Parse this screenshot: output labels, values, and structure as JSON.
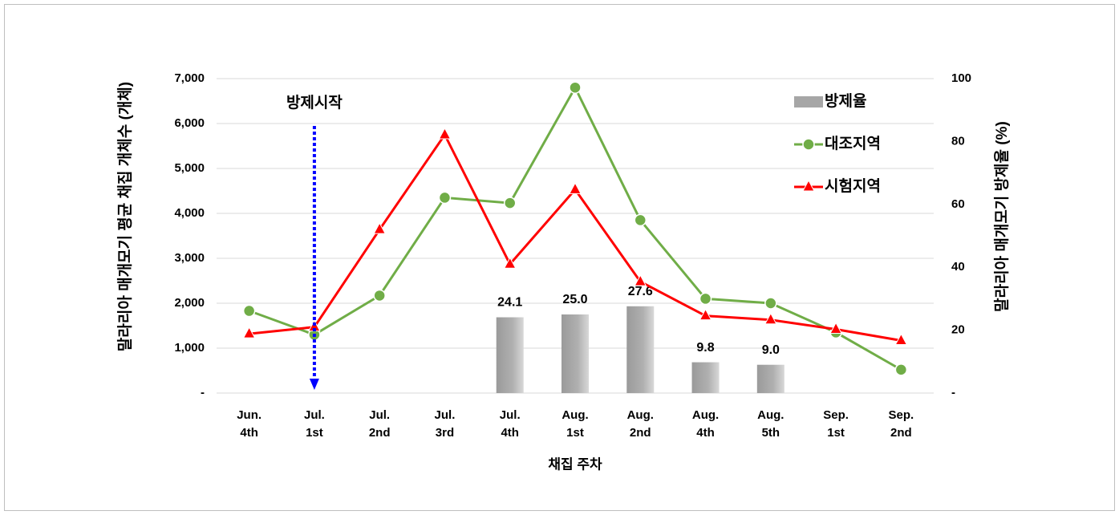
{
  "chart_data": {
    "type": "bar-line",
    "annotation": "방제시작",
    "x_label": "채집 주차",
    "y_label": "말라리아 매개모기 평균 채집 개체수 (개체)",
    "y2_label": "말라리아 매개모기 방제율 (%)",
    "categories": [
      "Jun. 4th",
      "Jul. 1st",
      "Jul. 2nd",
      "Jul. 3rd",
      "Jul. 4th",
      "Aug. 1st",
      "Aug. 2nd",
      "Aug. 4th",
      "Aug. 5th",
      "Sep. 1st",
      "Sep. 2nd"
    ],
    "series": [
      {
        "name": "방제율",
        "type": "bar",
        "axis": "y2",
        "color": "#a6a6a6",
        "values": [
          null,
          null,
          null,
          null,
          24.1,
          25.0,
          27.6,
          9.8,
          9.0,
          null,
          null
        ],
        "value_labels": [
          null,
          null,
          null,
          null,
          "24.1",
          "25.0",
          "27.6",
          "9.8",
          "9.0",
          null,
          null
        ]
      },
      {
        "name": "대조지역",
        "type": "line",
        "color": "#70ad47",
        "marker": "circle",
        "values": [
          1830,
          1300,
          2170,
          4350,
          4230,
          6800,
          3850,
          2100,
          2000,
          1350,
          520
        ]
      },
      {
        "name": "시험지역",
        "type": "line",
        "color": "#ff0000",
        "marker": "triangle",
        "values": [
          1320,
          1470,
          3640,
          5750,
          2870,
          4530,
          2480,
          1720,
          1630,
          1420,
          1170
        ]
      }
    ],
    "annotation_category": 1,
    "ylim": [
      0,
      7000
    ],
    "yticks": [
      {
        "value": 0,
        "label": "-"
      },
      {
        "value": 1000,
        "label": "1,000"
      },
      {
        "value": 2000,
        "label": "2,000"
      },
      {
        "value": 3000,
        "label": "3,000"
      },
      {
        "value": 4000,
        "label": "4,000"
      },
      {
        "value": 5000,
        "label": "5,000"
      },
      {
        "value": 6000,
        "label": "6,000"
      },
      {
        "value": 7000,
        "label": "7,000"
      }
    ],
    "y2lim": [
      0,
      100
    ],
    "y2ticks": [
      {
        "value": 0,
        "label": "-"
      },
      20,
      40,
      60,
      80,
      100
    ],
    "grid": true,
    "legend": "upper right"
  }
}
